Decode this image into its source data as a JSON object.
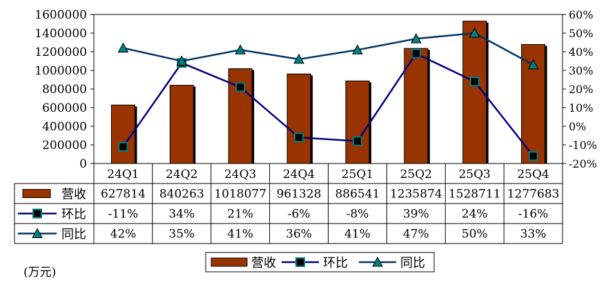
{
  "chart_data": {
    "type": "bar",
    "categories": [
      "24Q1",
      "24Q2",
      "24Q3",
      "24Q4",
      "25Q1",
      "25Q2",
      "25Q3",
      "25Q4"
    ],
    "series": [
      {
        "name": "营收",
        "type": "bar",
        "axis": "left",
        "color": "#993300",
        "values": [
          627814,
          840263,
          1018077,
          961328,
          886541,
          1235874,
          1528711,
          1277683
        ]
      },
      {
        "name": "环比",
        "type": "line",
        "axis": "right",
        "color": "#000080",
        "marker": "square",
        "marker_color": "#008080",
        "values": [
          -11,
          34,
          21,
          -6,
          -8,
          39,
          24,
          -16
        ]
      },
      {
        "name": "同比",
        "type": "line",
        "axis": "right",
        "color": "#003366",
        "marker": "triangle",
        "marker_color": "#008080",
        "values": [
          42,
          35,
          41,
          36,
          41,
          47,
          50,
          33
        ]
      }
    ],
    "left_axis": {
      "min": 0,
      "max": 1600000,
      "step": 200000
    },
    "right_axis": {
      "min": -20,
      "max": 60,
      "step": 10,
      "unit": "%"
    },
    "data_table": {
      "rows": [
        {
          "label": "营收",
          "cells": [
            "627814",
            "840263",
            "1018077",
            "961328",
            "886541",
            "1235874",
            "1528711",
            "1277683"
          ]
        },
        {
          "label": "环比",
          "cells": [
            "-11%",
            "34%",
            "21%",
            "-6%",
            "-8%",
            "39%",
            "24%",
            "-16%"
          ]
        },
        {
          "label": "同比",
          "cells": [
            "42%",
            "35%",
            "41%",
            "36%",
            "41%",
            "47%",
            "50%",
            "33%"
          ]
        }
      ]
    },
    "legend": {
      "position": "bottom",
      "entries": [
        "营收",
        "环比",
        "同比"
      ]
    },
    "unit_note": "(万元)",
    "grid": false
  }
}
